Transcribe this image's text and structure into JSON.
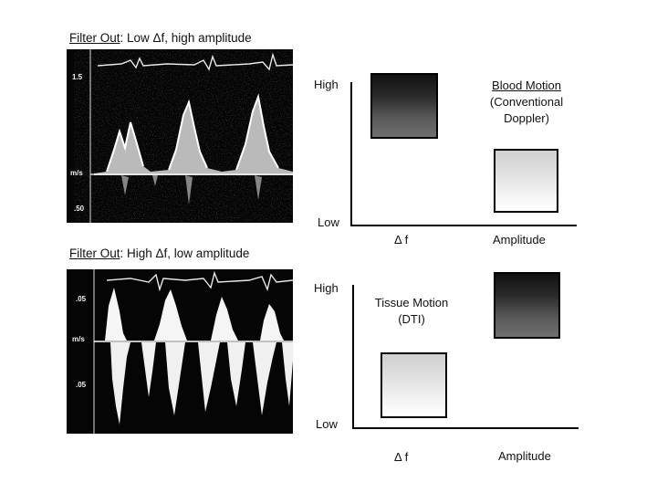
{
  "top": {
    "title_underlined": "Filter Out",
    "title_rest": ": Low  Δf, high amplitude",
    "ticks": {
      "t1": "1.5",
      "t2": "m/s",
      "t3": ".50"
    },
    "diagram": {
      "y_high": "High",
      "y_low": "Low",
      "x_left": "Δ f",
      "x_right": "Amplitude",
      "caption_underlined": "Blood Motion",
      "caption_line2": "(Conventional",
      "caption_line3": "Doppler)"
    }
  },
  "bottom": {
    "title_underlined": "Filter Out",
    "title_rest": ":  High Δf, low amplitude",
    "ticks": {
      "t1": ".05",
      "t2": "m/s",
      "t3": ".05"
    },
    "diagram": {
      "y_high": "High",
      "y_low": "Low",
      "x_left": "Δ f",
      "x_right": "Amplitude",
      "caption_line1": "Tissue Motion",
      "caption_line2": "(DTI)"
    }
  }
}
